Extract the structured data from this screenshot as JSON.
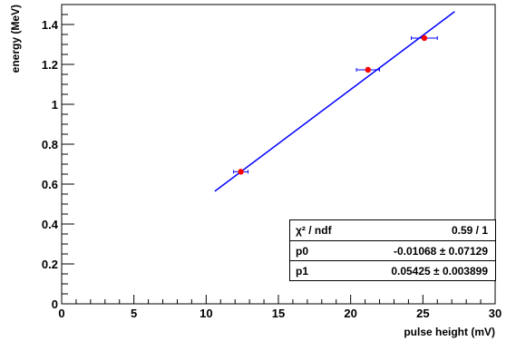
{
  "chart_data": {
    "type": "scatter",
    "title": "",
    "xlabel": "pulse height (mV)",
    "ylabel": "energy (MeV)",
    "xlim": [
      0,
      30
    ],
    "ylim": [
      0,
      1.5
    ],
    "x_ticks": [
      "0",
      "5",
      "10",
      "15",
      "20",
      "25",
      "30"
    ],
    "y_ticks": [
      "0",
      "0.2",
      "0.4",
      "0.6",
      "0.8",
      "1",
      "1.2",
      "1.4"
    ],
    "grid": false,
    "points": [
      {
        "x": 12.4,
        "y": 0.662,
        "x_err": 0.5
      },
      {
        "x": 21.2,
        "y": 1.173,
        "x_err": 0.8
      },
      {
        "x": 25.1,
        "y": 1.332,
        "x_err": 0.9
      }
    ],
    "fit": {
      "type": "linear",
      "x_range": [
        10.6,
        27.2
      ],
      "p0": -0.01068,
      "p1": 0.05425
    },
    "colors": {
      "points": "#ff0000",
      "errors": "#0000ff",
      "fit": "#0000ff"
    }
  },
  "stats": {
    "rows": [
      {
        "name": "χ² / ndf",
        "value": "0.59 / 1"
      },
      {
        "name": "p0",
        "value": "-0.01068 ± 0.07129"
      },
      {
        "name": "p1",
        "value": "0.05425 ± 0.003899"
      }
    ]
  }
}
